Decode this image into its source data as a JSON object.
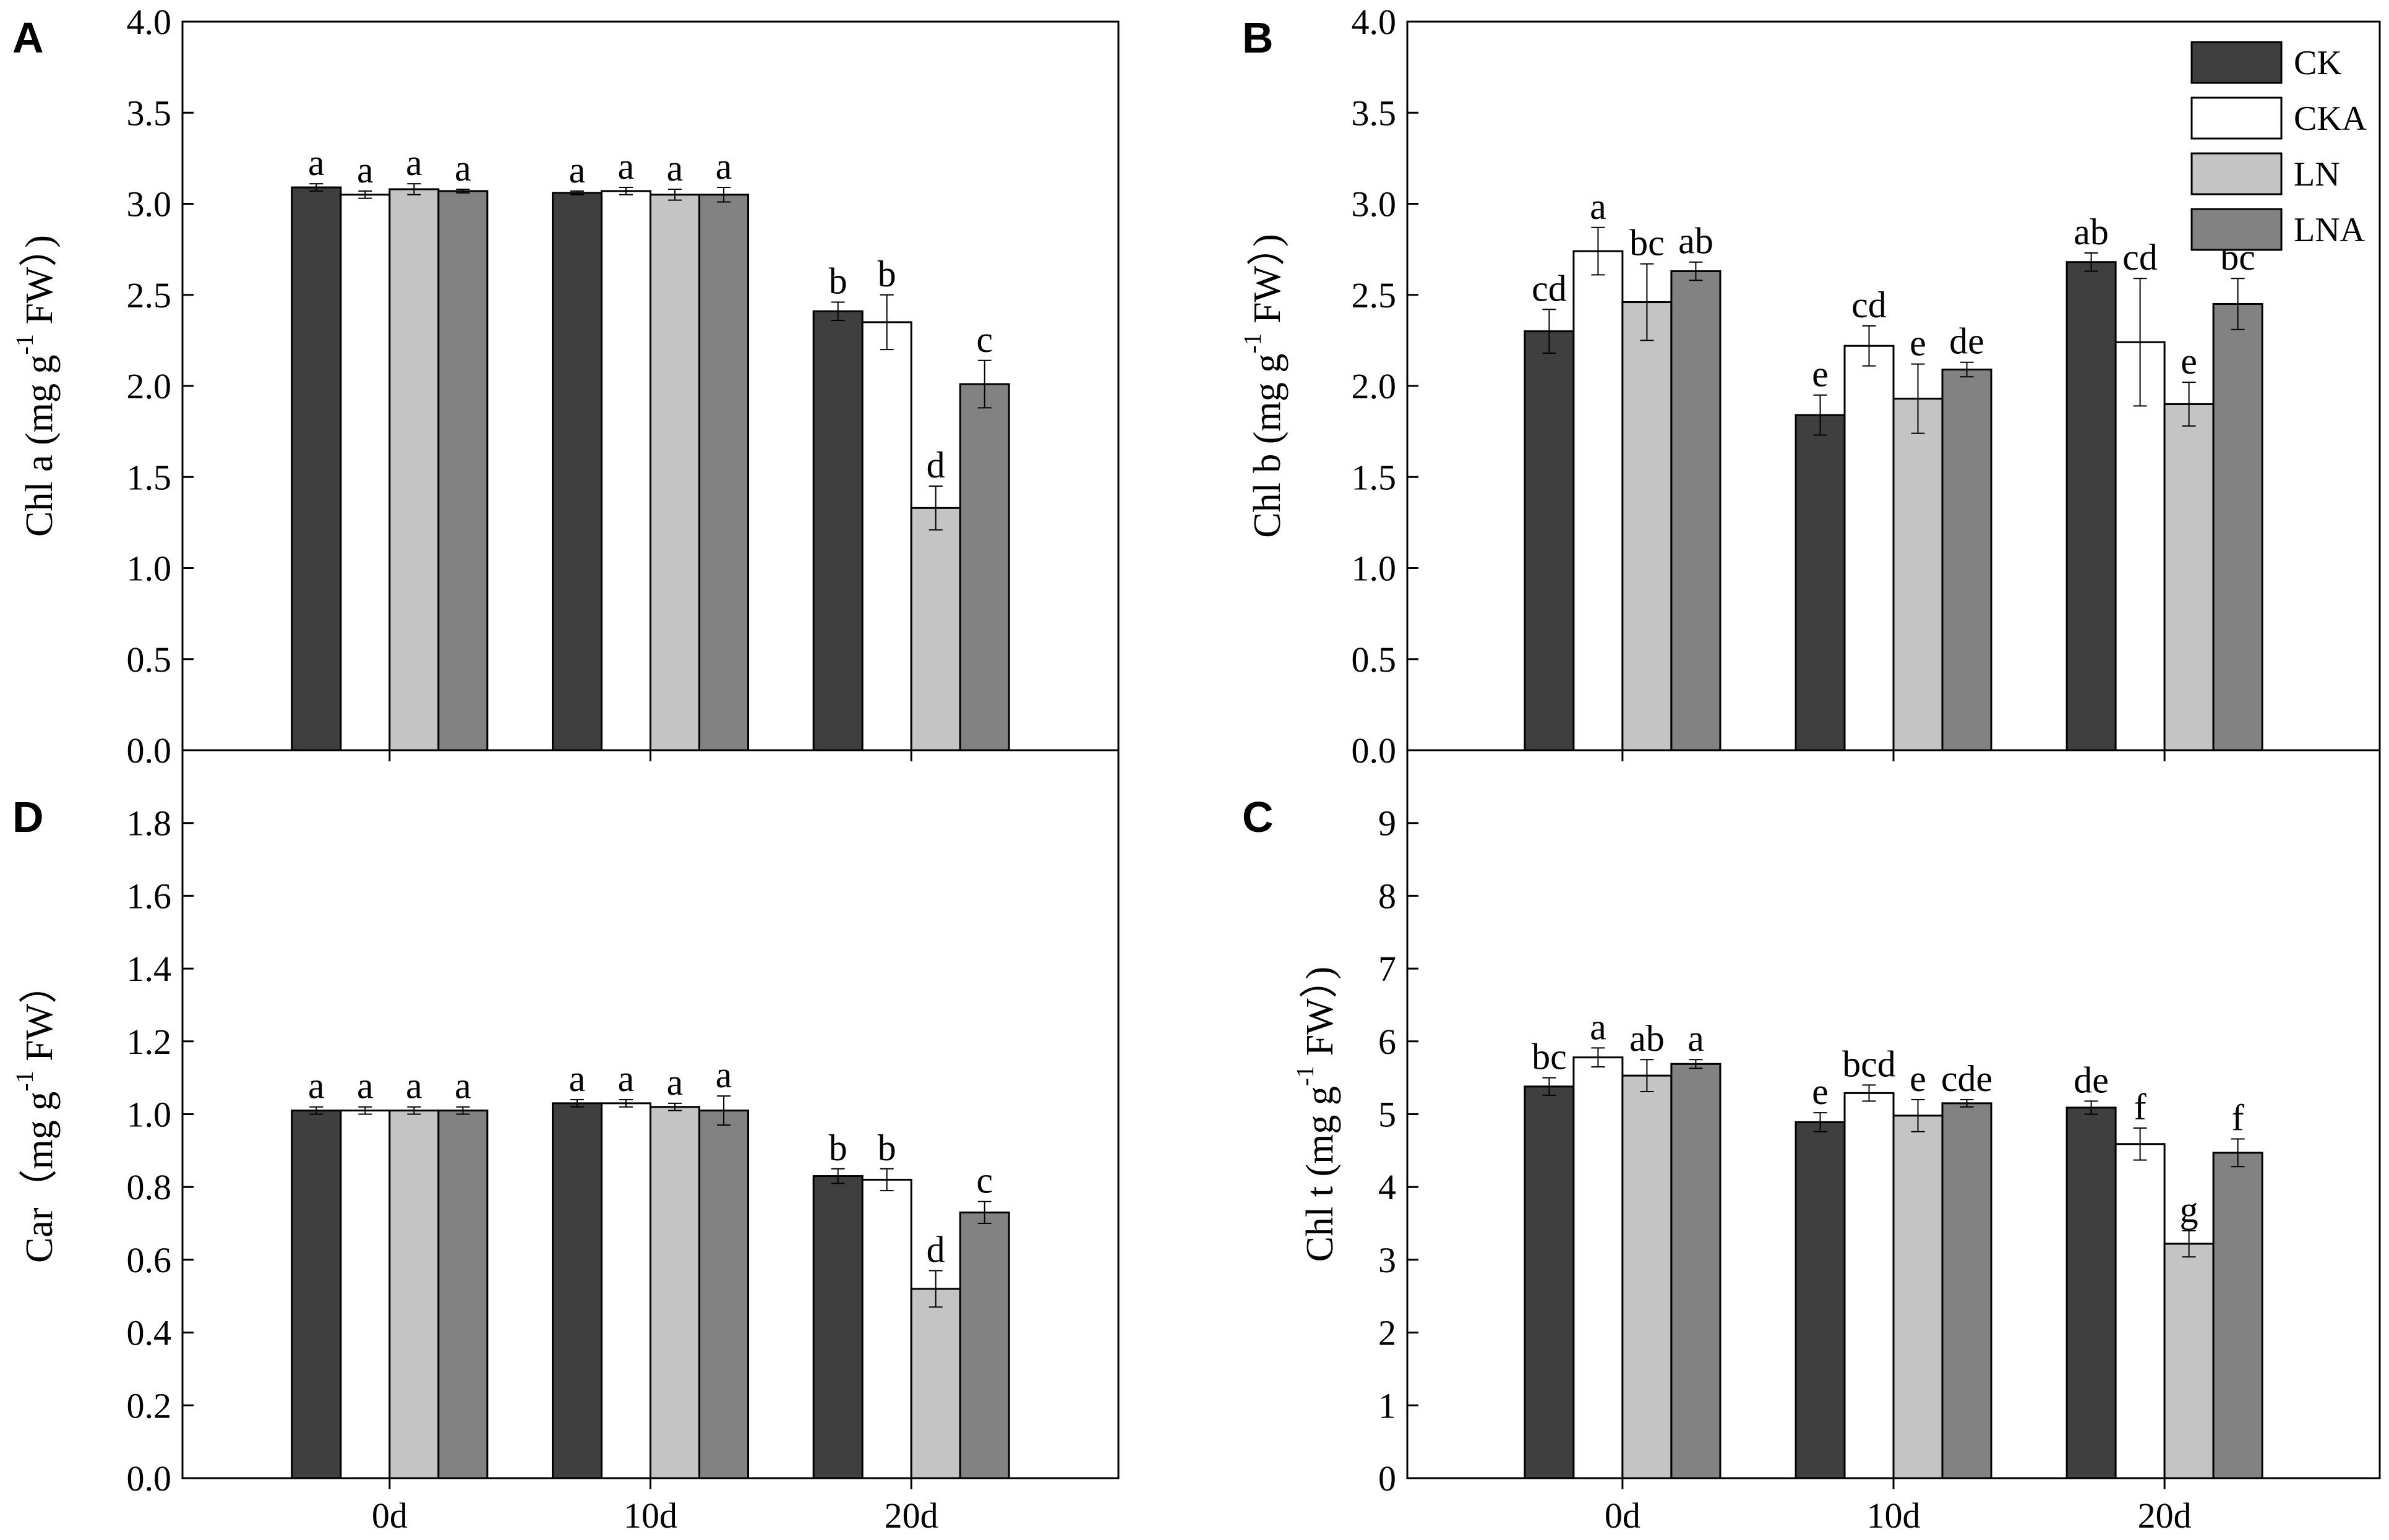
{
  "colors": {
    "CK": "#3f3f3f",
    "CKA": "#ffffff",
    "LN": "#c4c4c4",
    "LNA": "#828282",
    "axis": "#000000"
  },
  "legend": {
    "entries": [
      "CK",
      "CKA",
      "LN",
      "LNA"
    ]
  },
  "chart_data": [
    {
      "id": "A",
      "panel_letter": "A",
      "type": "bar",
      "ylabel_parts": [
        "Chl a (mg g",
        "-1",
        " FW）)"
      ],
      "ylim": [
        0,
        4.0
      ],
      "ytick_step": 0.5,
      "ytick_labels": [
        "0.0",
        "0.5",
        "1.0",
        "1.5",
        "2.0",
        "2.5",
        "3.0",
        "3.5",
        "4.0"
      ],
      "categories": [
        "0d",
        "10d",
        "20d"
      ],
      "show_xtick_labels": false,
      "series": [
        {
          "name": "CK",
          "values": [
            3.09,
            3.06,
            2.41
          ],
          "errors": [
            0.02,
            0.01,
            0.05
          ],
          "labels": [
            "a",
            "a",
            "b"
          ]
        },
        {
          "name": "CKA",
          "values": [
            3.05,
            3.07,
            2.35
          ],
          "errors": [
            0.02,
            0.02,
            0.15
          ],
          "labels": [
            "a",
            "a",
            "b"
          ]
        },
        {
          "name": "LN",
          "values": [
            3.08,
            3.05,
            1.33
          ],
          "errors": [
            0.03,
            0.03,
            0.12
          ],
          "labels": [
            "a",
            "a",
            "d"
          ]
        },
        {
          "name": "LNA",
          "values": [
            3.07,
            3.05,
            2.01
          ],
          "errors": [
            0.01,
            0.04,
            0.13
          ],
          "labels": [
            "a",
            "a",
            "c"
          ]
        }
      ]
    },
    {
      "id": "B",
      "panel_letter": "B",
      "type": "bar",
      "ylabel_parts": [
        "Chl b (mg g",
        "-1",
        " FW）)"
      ],
      "ylim": [
        0,
        4.0
      ],
      "ytick_step": 0.5,
      "ytick_labels": [
        "0.0",
        "0.5",
        "1.0",
        "1.5",
        "2.0",
        "2.5",
        "3.0",
        "3.5",
        "4.0"
      ],
      "categories": [
        "0d",
        "10d",
        "20d"
      ],
      "show_xtick_labels": false,
      "series": [
        {
          "name": "CK",
          "values": [
            2.3,
            1.84,
            2.68
          ],
          "errors": [
            0.12,
            0.11,
            0.05
          ],
          "labels": [
            "cd",
            "e",
            "ab"
          ]
        },
        {
          "name": "CKA",
          "values": [
            2.74,
            2.22,
            2.24
          ],
          "errors": [
            0.13,
            0.11,
            0.35
          ],
          "labels": [
            "a",
            "cd",
            "cd"
          ]
        },
        {
          "name": "LN",
          "values": [
            2.46,
            1.93,
            1.9
          ],
          "errors": [
            0.21,
            0.19,
            0.12
          ],
          "labels": [
            "bc",
            "e",
            "e"
          ]
        },
        {
          "name": "LNA",
          "values": [
            2.63,
            2.09,
            2.45
          ],
          "errors": [
            0.05,
            0.04,
            0.14
          ],
          "labels": [
            "ab",
            "de",
            "bc"
          ]
        }
      ]
    },
    {
      "id": "D",
      "panel_letter": "D",
      "type": "bar",
      "ylabel_parts": [
        "Car（mg g",
        "-1",
        " FW）"
      ],
      "ylim": [
        0,
        2.0
      ],
      "ytick_step": 0.2,
      "ytick_labels": [
        "0.0",
        "0.2",
        "0.4",
        "0.6",
        "0.8",
        "1.0",
        "1.2",
        "1.4",
        "1.6",
        "1.8"
      ],
      "categories": [
        "0d",
        "10d",
        "20d"
      ],
      "show_xtick_labels": true,
      "series": [
        {
          "name": "CK",
          "values": [
            1.01,
            1.03,
            0.83
          ],
          "errors": [
            0.01,
            0.01,
            0.02
          ],
          "labels": [
            "a",
            "a",
            "b"
          ]
        },
        {
          "name": "CKA",
          "values": [
            1.01,
            1.03,
            0.82
          ],
          "errors": [
            0.01,
            0.01,
            0.03
          ],
          "labels": [
            "a",
            "a",
            "b"
          ]
        },
        {
          "name": "LN",
          "values": [
            1.01,
            1.02,
            0.52
          ],
          "errors": [
            0.01,
            0.01,
            0.05
          ],
          "labels": [
            "a",
            "a",
            "d"
          ]
        },
        {
          "name": "LNA",
          "values": [
            1.01,
            1.01,
            0.73
          ],
          "errors": [
            0.01,
            0.04,
            0.03
          ],
          "labels": [
            "a",
            "a",
            "c"
          ]
        }
      ]
    },
    {
      "id": "C",
      "panel_letter": "C",
      "type": "bar",
      "ylabel_parts": [
        "Chl t (mg g",
        "-1",
        " FW）)"
      ],
      "ylim": [
        0,
        10
      ],
      "ytick_step": 1,
      "ytick_labels": [
        "0",
        "1",
        "2",
        "3",
        "4",
        "5",
        "6",
        "7",
        "8",
        "9"
      ],
      "categories": [
        "0d",
        "10d",
        "20d"
      ],
      "show_xtick_labels": true,
      "series": [
        {
          "name": "CK",
          "values": [
            5.38,
            4.89,
            5.09
          ],
          "errors": [
            0.12,
            0.13,
            0.09
          ],
          "labels": [
            "bc",
            "e",
            "de"
          ]
        },
        {
          "name": "CKA",
          "values": [
            5.78,
            5.29,
            4.59
          ],
          "errors": [
            0.13,
            0.11,
            0.22
          ],
          "labels": [
            "a",
            "bcd",
            "f"
          ]
        },
        {
          "name": "LN",
          "values": [
            5.53,
            4.98,
            3.22
          ],
          "errors": [
            0.22,
            0.22,
            0.18
          ],
          "labels": [
            "ab",
            "e",
            "g"
          ]
        },
        {
          "name": "LNA",
          "values": [
            5.69,
            5.15,
            4.47
          ],
          "errors": [
            0.06,
            0.05,
            0.19
          ],
          "labels": [
            "a",
            "cde",
            "f"
          ]
        }
      ]
    }
  ]
}
